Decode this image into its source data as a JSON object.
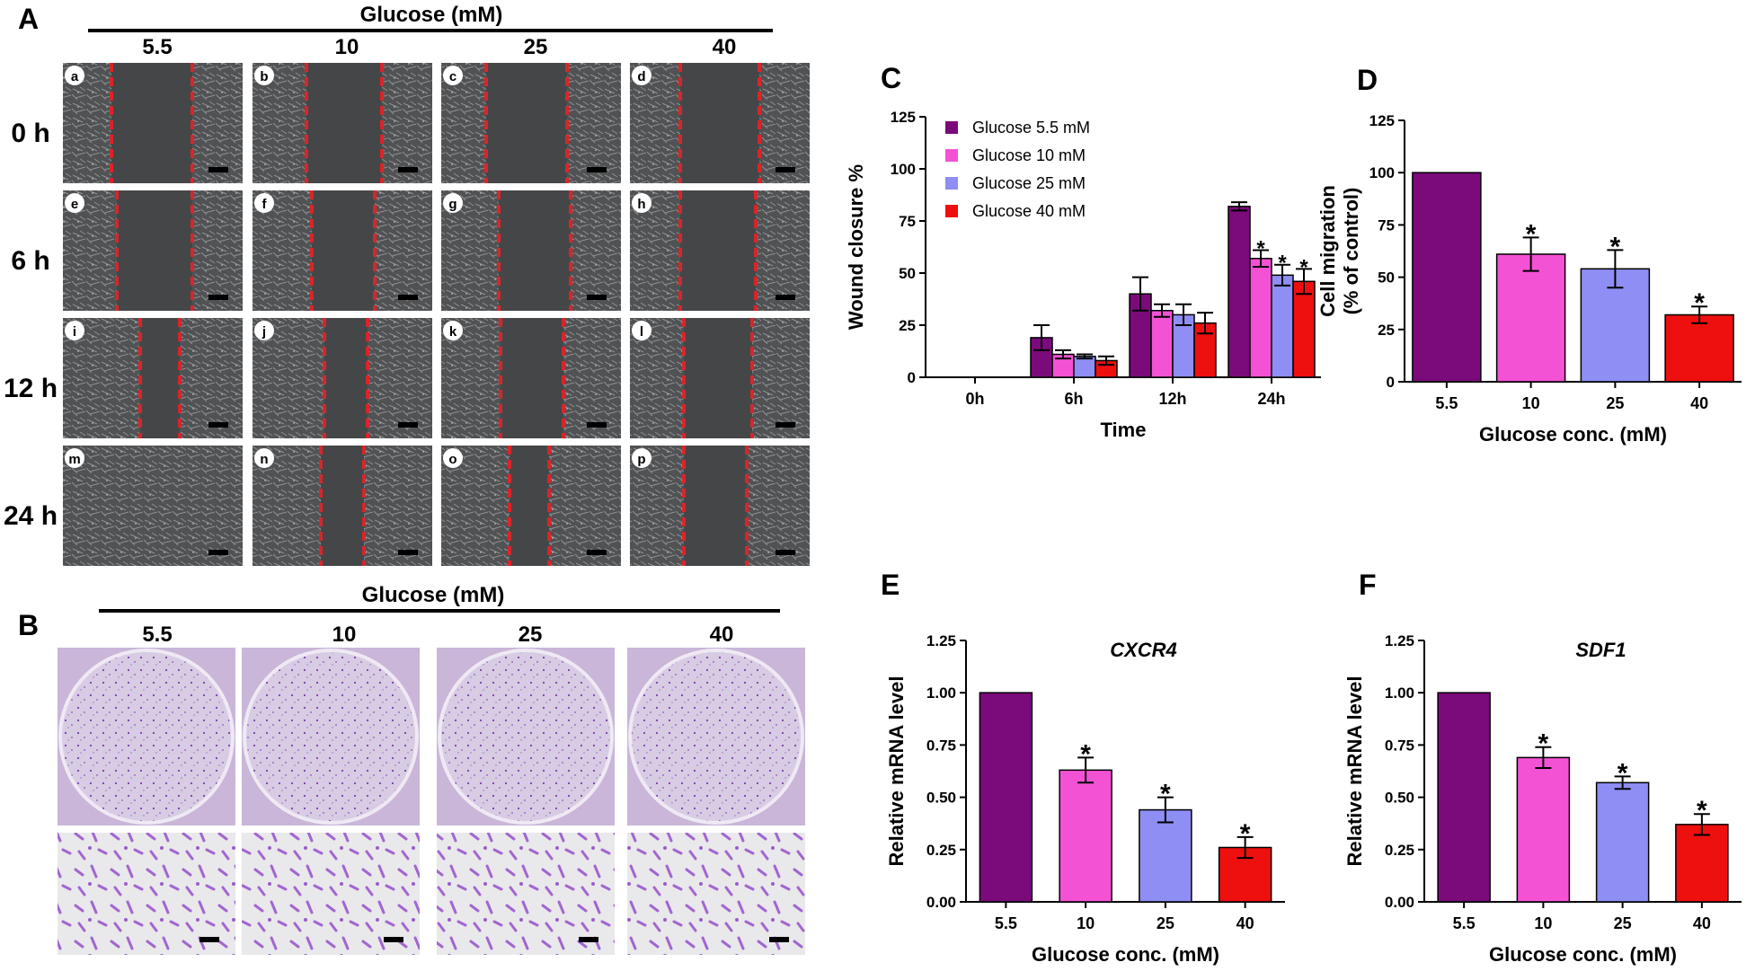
{
  "colors": {
    "c55": "#7b0a7b",
    "c10": "#f452d4",
    "c25": "#8e8ef4",
    "c40": "#ee0f0f",
    "stain": "#7a3fb0",
    "dish": "#cfc0dc",
    "micro": "#4b4d4f"
  },
  "panel_a": {
    "letter": "A",
    "group_title": "Glucose (mM)",
    "columns": [
      "5.5",
      "10",
      "25",
      "40"
    ],
    "rows": [
      "0 h",
      "6 h",
      "12 h",
      "24 h"
    ],
    "tiles": [
      "a",
      "b",
      "c",
      "d",
      "e",
      "f",
      "g",
      "h",
      "i",
      "j",
      "k",
      "l",
      "m",
      "n",
      "o",
      "p"
    ]
  },
  "panel_b": {
    "letter": "B",
    "group_title": "Glucose (mM)",
    "columns": [
      "5.5",
      "10",
      "25",
      "40"
    ]
  },
  "chart_data": [
    {
      "id": "C",
      "letter": "C",
      "type": "bar",
      "title": "",
      "xlabel": "Time",
      "ylabel": "Wound closure %",
      "categories": [
        "0h",
        "6h",
        "12h",
        "24h"
      ],
      "ylim": [
        0,
        125
      ],
      "yticks": [
        "0",
        "25",
        "50",
        "75",
        "100",
        "125"
      ],
      "legend_position": "top-left",
      "series": [
        {
          "name": "Glucose 5.5 mM",
          "values": [
            0,
            19,
            40,
            82
          ],
          "errors": [
            0,
            6,
            8,
            2
          ],
          "sig": [
            "",
            "",
            "",
            ""
          ]
        },
        {
          "name": "Glucose 10 mM",
          "values": [
            0,
            11,
            32,
            57
          ],
          "errors": [
            0,
            2,
            3,
            4
          ],
          "sig": [
            "",
            "",
            "",
            "*"
          ]
        },
        {
          "name": "Glucose 25 mM",
          "values": [
            0,
            10,
            30,
            49
          ],
          "errors": [
            0,
            1,
            5,
            5
          ],
          "sig": [
            "",
            "",
            "",
            "*"
          ]
        },
        {
          "name": "Glucose 40 mM",
          "values": [
            0,
            8,
            26,
            46
          ],
          "errors": [
            0,
            2,
            5,
            6
          ],
          "sig": [
            "",
            "",
            "",
            "*"
          ]
        }
      ]
    },
    {
      "id": "D",
      "letter": "D",
      "type": "bar",
      "title": "",
      "xlabel": "Glucose conc. (mM)",
      "ylabel": [
        "Cell migration",
        "(% of control)"
      ],
      "categories": [
        "5.5",
        "10",
        "25",
        "40"
      ],
      "values": [
        100,
        61,
        54,
        32
      ],
      "errors": [
        0,
        8,
        9,
        4
      ],
      "sig": [
        "",
        "*",
        "*",
        "*"
      ],
      "ylim": [
        0,
        125
      ],
      "yticks": [
        "0",
        "25",
        "50",
        "75",
        "100",
        "125"
      ]
    },
    {
      "id": "E",
      "letter": "E",
      "type": "bar",
      "title": "CXCR4",
      "xlabel": "Glucose conc. (mM)",
      "ylabel": "Relative mRNA level",
      "categories": [
        "5.5",
        "10",
        "25",
        "40"
      ],
      "values": [
        1.0,
        0.63,
        0.44,
        0.26
      ],
      "errors": [
        0,
        0.06,
        0.06,
        0.05
      ],
      "sig": [
        "",
        "*",
        "*",
        "*"
      ],
      "ylim": [
        0,
        1.25
      ],
      "yticks": [
        "0.00",
        "0.25",
        "0.50",
        "0.75",
        "1.00",
        "1.25"
      ]
    },
    {
      "id": "F",
      "letter": "F",
      "type": "bar",
      "title": "SDF1",
      "xlabel": "Glucose conc. (mM)",
      "ylabel": "Relative mRNA level",
      "categories": [
        "5.5",
        "10",
        "25",
        "40"
      ],
      "values": [
        1.0,
        0.69,
        0.57,
        0.37
      ],
      "errors": [
        0,
        0.05,
        0.03,
        0.05
      ],
      "sig": [
        "",
        "*",
        "*",
        "*"
      ],
      "ylim": [
        0,
        1.25
      ],
      "yticks": [
        "0.00",
        "0.25",
        "0.50",
        "0.75",
        "1.00",
        "1.25"
      ]
    }
  ]
}
